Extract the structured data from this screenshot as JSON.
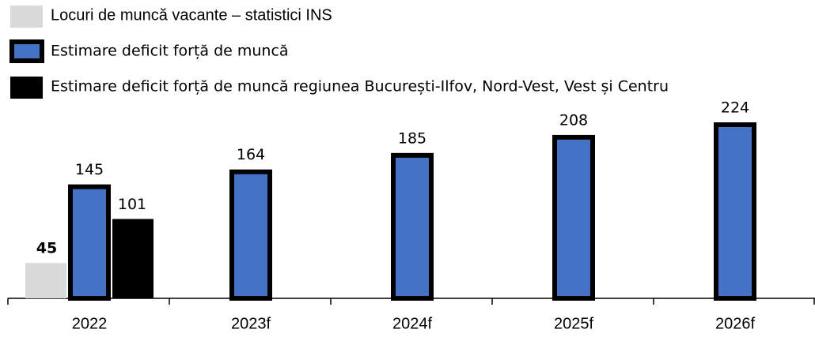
{
  "chart_data": {
    "type": "bar",
    "categories": [
      "2022",
      "2023f",
      "2024f",
      "2025f",
      "2026f"
    ],
    "series": [
      {
        "name": "Locuri de muncă vacante – statistici INS",
        "color": "#d9d9d9",
        "values": [
          45,
          null,
          null,
          null,
          null
        ]
      },
      {
        "name": "Estimare deficit forță de muncă",
        "color": "#4472c4",
        "values": [
          145,
          164,
          185,
          208,
          224
        ]
      },
      {
        "name": "Estimare deficit forță de muncă regiunea București-Ilfov, Nord-Vest, Vest și Centru",
        "color": "#000000",
        "values": [
          101,
          null,
          null,
          null,
          null
        ]
      }
    ],
    "legend": "top-left"
  }
}
